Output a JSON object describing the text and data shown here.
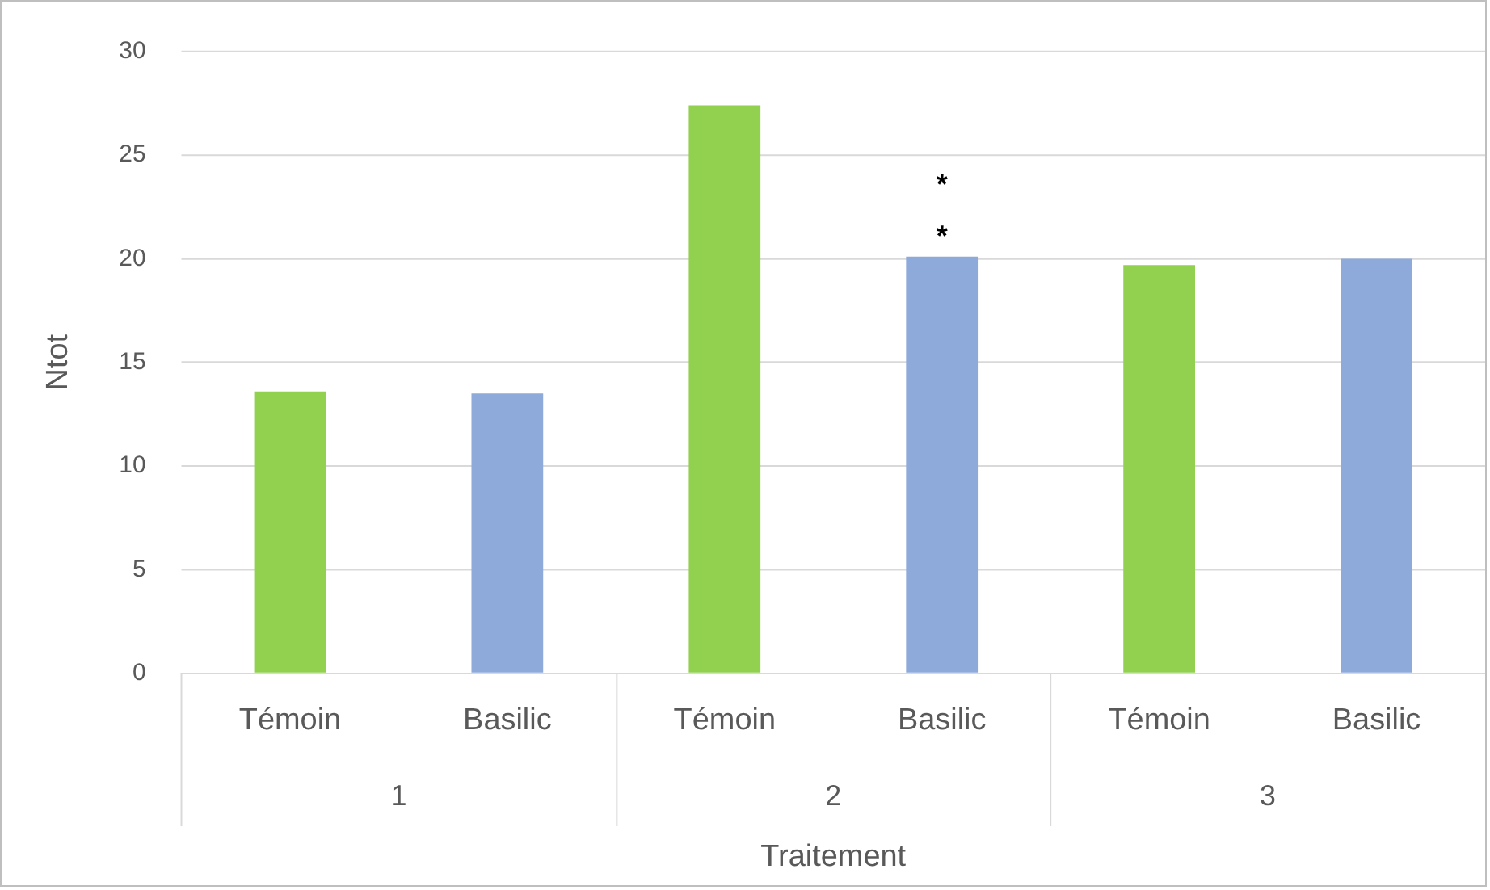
{
  "chart_data": {
    "type": "bar",
    "xlabel": "Traitement",
    "ylabel": "Ntot",
    "categories": [
      "Témoin",
      "Basilic",
      "Témoin",
      "Basilic",
      "Témoin",
      "Basilic"
    ],
    "values": [
      13.6,
      13.5,
      27.4,
      20.1,
      19.7,
      20.0
    ],
    "colors": [
      "#92d050",
      "#8eaadb",
      "#92d050",
      "#8eaadb",
      "#92d050",
      "#8eaadb"
    ],
    "ylim": [
      0,
      30
    ],
    "yticks": [
      0,
      5,
      10,
      15,
      20,
      25,
      30
    ],
    "grid": "y",
    "legend": false,
    "annotations": [
      "1",
      "2",
      "3",
      "*",
      "*"
    ]
  }
}
